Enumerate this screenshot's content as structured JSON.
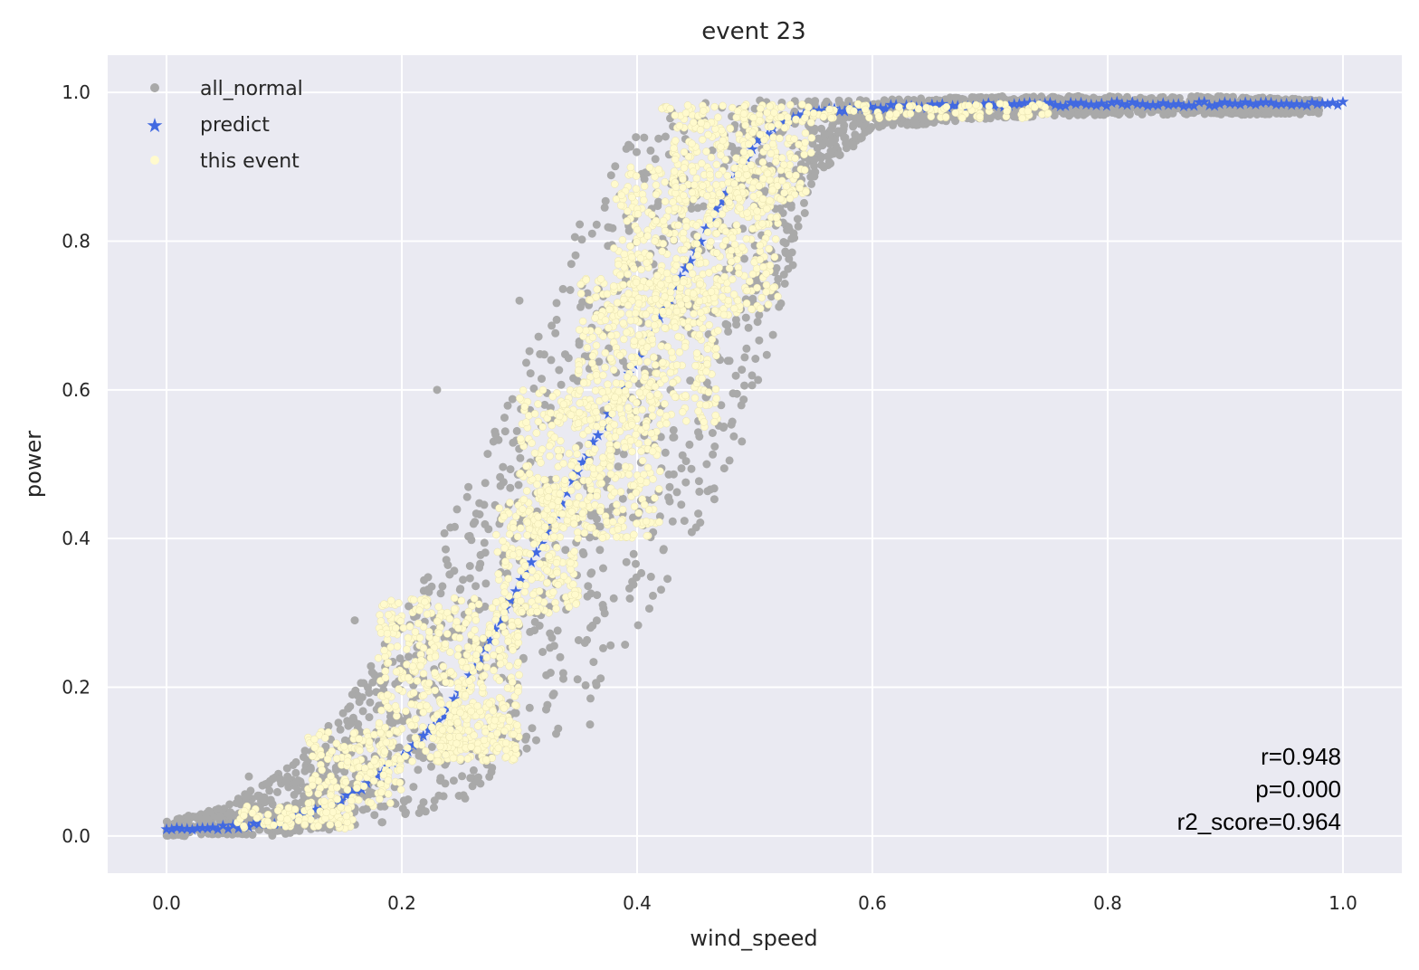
{
  "chart_data": {
    "type": "scatter",
    "title": "event 23",
    "xlabel": "wind_speed",
    "ylabel": "power",
    "xlim": [
      -0.05,
      1.05
    ],
    "ylim": [
      -0.05,
      1.05
    ],
    "xticks": [
      0.0,
      0.2,
      0.4,
      0.6,
      0.8,
      1.0
    ],
    "yticks": [
      0.0,
      0.2,
      0.4,
      0.6,
      0.8,
      1.0
    ],
    "xtick_labels": [
      "0.0",
      "0.2",
      "0.4",
      "0.6",
      "0.8",
      "1.0"
    ],
    "ytick_labels": [
      "0.0",
      "0.2",
      "0.4",
      "0.6",
      "0.8",
      "1.0"
    ],
    "grid": true,
    "legend_position": "top-left",
    "background_color": "#eaeaf2",
    "series": [
      {
        "name": "all_normal",
        "marker": "circle",
        "color": "#a9a9a9",
        "envelope": {
          "x": [
            0.0,
            0.05,
            0.1,
            0.15,
            0.2,
            0.25,
            0.3,
            0.35,
            0.4,
            0.45,
            0.5,
            0.55,
            0.6,
            0.7,
            0.8,
            0.9,
            0.98
          ],
          "y_low": [
            0.0,
            0.0,
            0.0,
            0.01,
            0.02,
            0.04,
            0.08,
            0.16,
            0.26,
            0.4,
            0.55,
            0.88,
            0.95,
            0.965,
            0.97,
            0.97,
            0.97
          ],
          "y_high": [
            0.02,
            0.04,
            0.09,
            0.17,
            0.3,
            0.45,
            0.62,
            0.82,
            0.95,
            0.99,
            0.99,
            0.99,
            0.99,
            0.995,
            0.995,
            0.995,
            0.99
          ]
        },
        "outliers": [
          {
            "x": 0.23,
            "y": 0.6
          },
          {
            "x": 0.16,
            "y": 0.29
          },
          {
            "x": 0.36,
            "y": 0.15
          },
          {
            "x": 0.3,
            "y": 0.72
          },
          {
            "x": 0.07,
            "y": 0.08
          }
        ]
      },
      {
        "name": "predict",
        "marker": "star",
        "color": "#4169e1",
        "x": [
          0.0,
          0.05,
          0.1,
          0.12,
          0.15,
          0.18,
          0.2,
          0.23,
          0.26,
          0.28,
          0.3,
          0.32,
          0.34,
          0.36,
          0.38,
          0.4,
          0.42,
          0.44,
          0.46,
          0.48,
          0.5,
          0.52,
          0.55,
          0.6,
          0.65,
          0.7,
          0.75,
          0.8,
          0.85,
          0.9,
          0.95,
          1.0
        ],
        "y": [
          0.01,
          0.012,
          0.02,
          0.03,
          0.05,
          0.08,
          0.11,
          0.15,
          0.22,
          0.28,
          0.34,
          0.4,
          0.46,
          0.52,
          0.58,
          0.64,
          0.7,
          0.76,
          0.82,
          0.88,
          0.93,
          0.96,
          0.975,
          0.98,
          0.982,
          0.983,
          0.984,
          0.985,
          0.985,
          0.985,
          0.985,
          0.985
        ]
      },
      {
        "name": "this event",
        "marker": "circle",
        "color": "#fffacd",
        "clusters": [
          {
            "x_range": [
              0.06,
              0.16
            ],
            "y_range": [
              0.01,
              0.04
            ]
          },
          {
            "x_range": [
              0.12,
              0.2
            ],
            "y_range": [
              0.04,
              0.14
            ]
          },
          {
            "x_range": [
              0.18,
              0.3
            ],
            "y_range": [
              0.1,
              0.32
            ]
          },
          {
            "x_range": [
              0.23,
              0.3
            ],
            "y_range": [
              0.1,
              0.18
            ]
          },
          {
            "x_range": [
              0.28,
              0.35
            ],
            "y_range": [
              0.3,
              0.45
            ]
          },
          {
            "x_range": [
              0.3,
              0.42
            ],
            "y_range": [
              0.4,
              0.6
            ]
          },
          {
            "x_range": [
              0.35,
              0.47
            ],
            "y_range": [
              0.55,
              0.75
            ]
          },
          {
            "x_range": [
              0.38,
              0.52
            ],
            "y_range": [
              0.7,
              0.9
            ]
          },
          {
            "x_range": [
              0.43,
              0.55
            ],
            "y_range": [
              0.85,
              0.97
            ]
          },
          {
            "x_range": [
              0.42,
              0.75
            ],
            "y_range": [
              0.965,
              0.985
            ]
          }
        ]
      }
    ],
    "annotations": [
      "r=0.948",
      "p=0.000",
      "r2_score=0.964"
    ]
  }
}
